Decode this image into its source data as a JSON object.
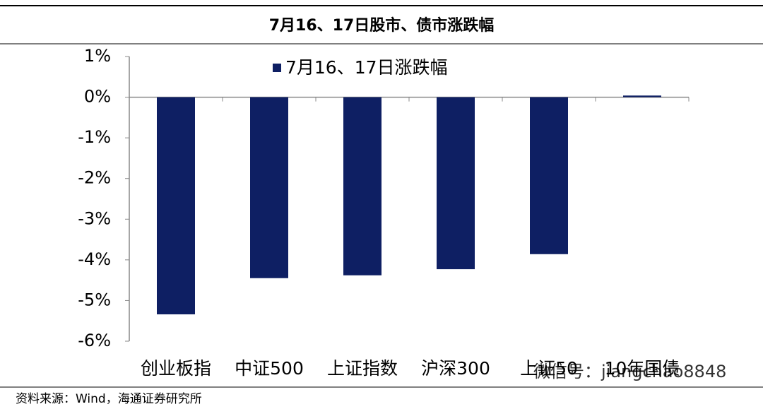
{
  "chart_data": {
    "type": "bar",
    "title": "7月16、17日股市、债市涨跌幅",
    "categories": [
      "创业板指",
      "中证500",
      "上证指数",
      "沪深300",
      "上证50",
      "10年国债"
    ],
    "series": [
      {
        "name": "7月16、17日涨跌幅",
        "color": "#0e1f63",
        "values": [
          -5.34,
          -4.45,
          -4.38,
          -4.23,
          -3.86,
          0.04
        ]
      }
    ],
    "ylim": [
      -6,
      1
    ],
    "yticks": [
      {
        "value": 1,
        "label": "1%"
      },
      {
        "value": 0,
        "label": "0%"
      },
      {
        "value": -1,
        "label": "-1%"
      },
      {
        "value": -2,
        "label": "-2%"
      },
      {
        "value": -3,
        "label": "-3%"
      },
      {
        "value": -4,
        "label": "-4%"
      },
      {
        "value": -5,
        "label": "-5%"
      },
      {
        "value": -6,
        "label": "-6%"
      }
    ],
    "legend": "top",
    "annotation": "微信号：jiangchao8848",
    "source": "资料来源：Wind，海通证券研究所"
  }
}
